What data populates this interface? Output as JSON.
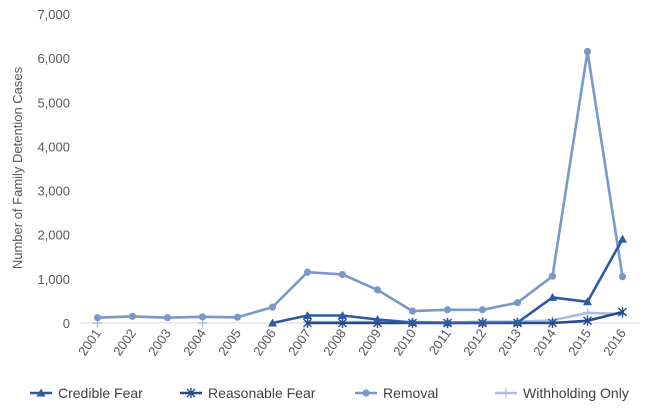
{
  "chart_data": {
    "type": "line",
    "title": "",
    "xlabel": "",
    "ylabel": "Number of Family Detention Cases",
    "ylim": [
      0,
      7000
    ],
    "yticks": [
      "0",
      "1,000",
      "2,000",
      "3,000",
      "4,000",
      "5,000",
      "6,000",
      "7,000"
    ],
    "categories": [
      "2001",
      "2002",
      "2003",
      "2004",
      "2005",
      "2006",
      "2007",
      "2008",
      "2009",
      "2010",
      "2011",
      "2012",
      "2013",
      "2014",
      "2015",
      "2016"
    ],
    "grid": false,
    "legend": "bottom",
    "series": [
      {
        "name": "Credible Fear",
        "color": "#2e5aa0",
        "marker": "triangle",
        "values": [
          null,
          null,
          null,
          null,
          null,
          0,
          170,
          170,
          80,
          10,
          5,
          5,
          10,
          580,
          480,
          1900
        ]
      },
      {
        "name": "Reasonable Fear",
        "color": "#274c8a",
        "marker": "asterisk",
        "values": [
          null,
          null,
          null,
          null,
          null,
          null,
          0,
          0,
          0,
          0,
          0,
          0,
          0,
          0,
          50,
          250
        ]
      },
      {
        "name": "Removal",
        "color": "#7a97cc",
        "marker": "circle",
        "values": [
          120,
          150,
          120,
          140,
          130,
          360,
          1150,
          1100,
          750,
          270,
          300,
          300,
          460,
          1060,
          6150,
          1050
        ]
      },
      {
        "name": "Withholding Only",
        "color": "#a9bce0",
        "marker": "plus",
        "values": [
          0,
          null,
          null,
          0,
          null,
          null,
          20,
          20,
          20,
          20,
          10,
          30,
          30,
          60,
          230,
          200
        ]
      }
    ]
  }
}
